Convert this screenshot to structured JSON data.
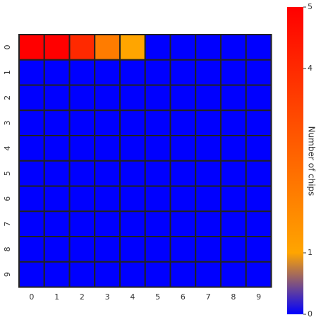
{
  "chart_data": {
    "type": "heatmap",
    "xcategories": [
      "0",
      "1",
      "2",
      "3",
      "4",
      "5",
      "6",
      "7",
      "8",
      "9"
    ],
    "ycategories": [
      "0",
      "1",
      "2",
      "3",
      "4",
      "5",
      "6",
      "7",
      "8",
      "9"
    ],
    "values": [
      [
        5,
        5,
        4,
        2,
        1,
        0,
        0,
        0,
        0,
        0
      ],
      [
        0,
        0,
        0,
        0,
        0,
        0,
        0,
        0,
        0,
        0
      ],
      [
        0,
        0,
        0,
        0,
        0,
        0,
        0,
        0,
        0,
        0
      ],
      [
        0,
        0,
        0,
        0,
        0,
        0,
        0,
        0,
        0,
        0
      ],
      [
        0,
        0,
        0,
        0,
        0,
        0,
        0,
        0,
        0,
        0
      ],
      [
        0,
        0,
        0,
        0,
        0,
        0,
        0,
        0,
        0,
        0
      ],
      [
        0,
        0,
        0,
        0,
        0,
        0,
        0,
        0,
        0,
        0
      ],
      [
        0,
        0,
        0,
        0,
        0,
        0,
        0,
        0,
        0,
        0
      ],
      [
        0,
        0,
        0,
        0,
        0,
        0,
        0,
        0,
        0,
        0
      ],
      [
        0,
        0,
        0,
        0,
        0,
        0,
        0,
        0,
        0,
        0
      ]
    ],
    "colorscale": [
      [
        0,
        "#0000ff"
      ],
      [
        1,
        "#ffa500"
      ],
      [
        5,
        "#ff0000"
      ]
    ],
    "clim": [
      0,
      5
    ],
    "cticks": [
      0,
      1,
      4,
      5
    ],
    "colorbar_label": "Number of chips"
  }
}
